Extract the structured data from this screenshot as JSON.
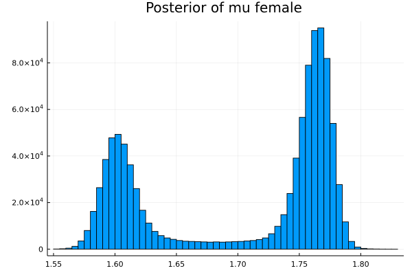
{
  "chart_data": {
    "type": "bar",
    "title": "Posterior of mu female",
    "xlabel": "",
    "ylabel": "",
    "xlim": [
      1.545,
      1.835
    ],
    "ylim": [
      -2850,
      97850
    ],
    "grid": true,
    "legend": "none",
    "bar_color": "#009AFA",
    "bin_width": 0.005,
    "bin_start": 1.55,
    "values": [
      50,
      150,
      400,
      1200,
      3500,
      8000,
      16200,
      26400,
      38500,
      47800,
      49300,
      45100,
      36200,
      26000,
      16700,
      11200,
      7600,
      5800,
      4800,
      4200,
      3700,
      3400,
      3300,
      3200,
      3100,
      3000,
      3100,
      3000,
      3100,
      3200,
      3300,
      3500,
      3700,
      4100,
      4800,
      6600,
      9800,
      14800,
      23900,
      39100,
      56600,
      79000,
      93900,
      95000,
      81900,
      54000,
      27700,
      11700,
      3300,
      900,
      300,
      100,
      50,
      20,
      10,
      5
    ],
    "x_ticks": [
      1.55,
      1.6,
      1.65,
      1.7,
      1.75,
      1.8
    ],
    "x_tick_labels": [
      "1.55",
      "1.60",
      "1.65",
      "1.70",
      "1.75",
      "1.80"
    ],
    "y_ticks": [
      0,
      20000,
      40000,
      60000,
      80000
    ],
    "y_tick_labels": [
      {
        "mantissa": "0",
        "exp": ""
      },
      {
        "mantissa": "2.0×10",
        "exp": "4"
      },
      {
        "mantissa": "4.0×10",
        "exp": "4"
      },
      {
        "mantissa": "6.0×10",
        "exp": "4"
      },
      {
        "mantissa": "8.0×10",
        "exp": "4"
      }
    ]
  }
}
